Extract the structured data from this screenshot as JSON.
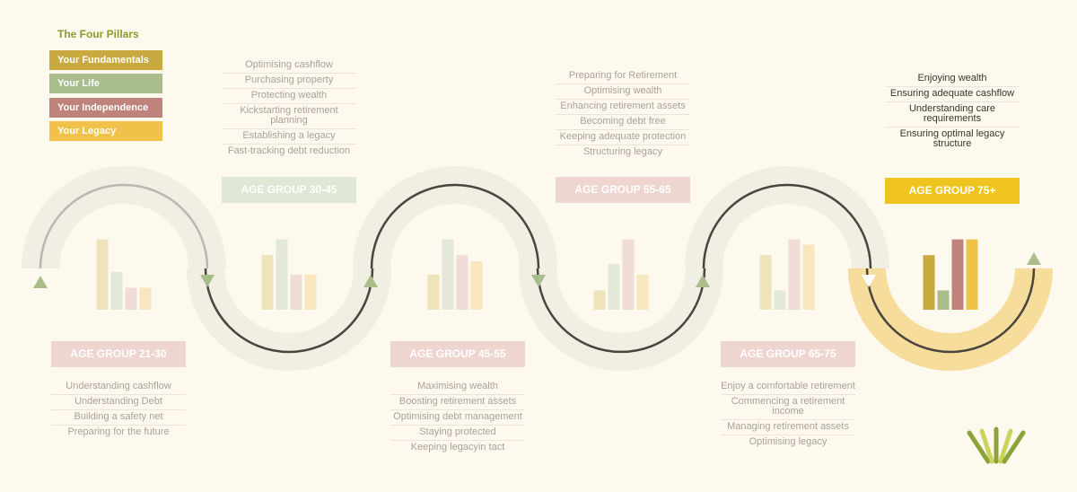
{
  "legend": {
    "title": "The Four Pillars",
    "items": [
      {
        "label": "Your Fundamentals",
        "color": "#c9aa40"
      },
      {
        "label": "Your Life",
        "color": "#a8bc8c"
      },
      {
        "label": "Your Independence",
        "color": "#c0837c"
      },
      {
        "label": "Your Legacy",
        "color": "#f0c24a"
      }
    ]
  },
  "age_groups": [
    {
      "label": "AGE GROUP 21-30",
      "label_color": "#efd5d0",
      "goals": [
        "Understanding cashflow",
        "Understanding Debt",
        "Building a safety net",
        "Preparing for the future"
      ],
      "bars": [
        0.8,
        0.43,
        0.25,
        0.25
      ],
      "highlight": false
    },
    {
      "label": "AGE GROUP 30-45",
      "label_color": "#dfe7d5",
      "goals": [
        "Optimising cashflow",
        "Purchasing property",
        "Protecting wealth",
        "Kickstarting retirement planning",
        "Establishing a legacy",
        "Fast-tracking debt reduction"
      ],
      "bars": [
        0.62,
        0.8,
        0.4,
        0.4
      ],
      "highlight": false
    },
    {
      "label": "AGE GROUP 45-55",
      "label_color": "#efd5d0",
      "goals": [
        "Maximising wealth",
        "Boosting retirement assets",
        "Optimising debt management",
        "Staying protected",
        "Keeping legacyin tact"
      ],
      "bars": [
        0.4,
        0.8,
        0.62,
        0.55
      ],
      "highlight": false
    },
    {
      "label": "AGE GROUP 55-65",
      "label_color": "#efd5d0",
      "goals": [
        "Preparing for Retirement",
        "Optimising wealth",
        "Enhancing retirement assets",
        "Becoming debt free",
        "Keeping adequate protection",
        "Structuring legacy"
      ],
      "bars": [
        0.22,
        0.52,
        0.8,
        0.4
      ],
      "highlight": false
    },
    {
      "label": "AGE GROUP 65-75",
      "label_color": "#efd5d0",
      "goals": [
        "Enjoy a comfortable retirement",
        "Commencing a retirement income",
        "Managing retirement assets",
        "Optimising legacy"
      ],
      "bars": [
        0.62,
        0.22,
        0.8,
        0.74
      ],
      "highlight": false
    },
    {
      "label": "AGE GROUP 75+",
      "label_color": "#f0c41e",
      "goals": [
        "Enjoying wealth",
        "Ensuring adequate cashflow",
        "Understanding care requirements",
        "Ensuring optimal legacy structure"
      ],
      "bars": [
        0.62,
        0.22,
        0.8,
        0.8
      ],
      "highlight": true
    }
  ],
  "colors": {
    "track": "#f1eee4",
    "track_final": "#f6dd9c",
    "path_light": "#b9b8b2",
    "path_dark": "#4a463e",
    "arrow_green": "#a9bd8b",
    "bar_faded": [
      "#efe3bc",
      "#e4e8d8",
      "#f0dcd7",
      "#f8e7be"
    ],
    "bar_full": [
      "#c9aa40",
      "#a8bc8c",
      "#c0837c",
      "#f0c24a"
    ],
    "logo": [
      "#8ba33a",
      "#c9d45a"
    ]
  },
  "logo_icon": "stylised-v-fan-logo"
}
